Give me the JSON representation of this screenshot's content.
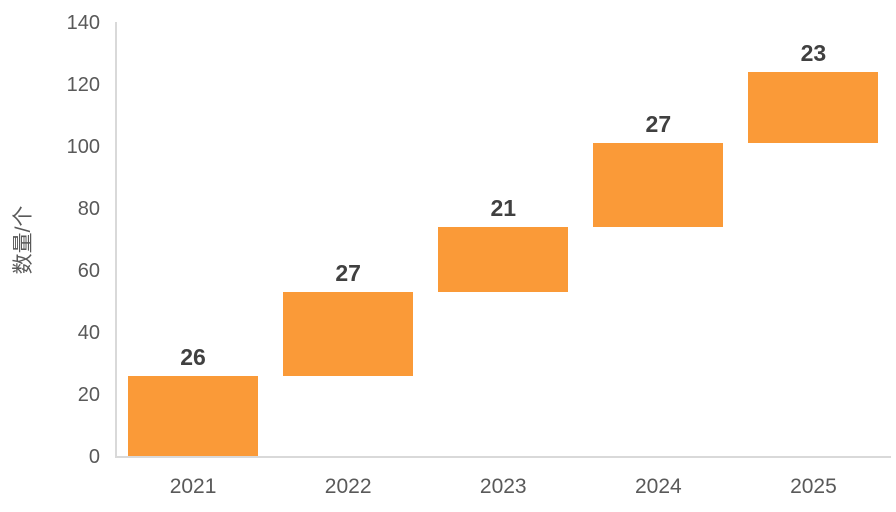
{
  "chart_data": {
    "type": "bar",
    "subtype": "waterfall",
    "title": "",
    "xlabel": "",
    "ylabel": "数量/个",
    "categories": [
      "2021",
      "2022",
      "2023",
      "2024",
      "2025"
    ],
    "values": [
      26,
      27,
      21,
      27,
      23
    ],
    "cumulative_totals": [
      26,
      53,
      74,
      101,
      124
    ],
    "data_labels": [
      "26",
      "27",
      "21",
      "27",
      "23"
    ],
    "ylim": [
      0,
      140
    ],
    "ytick_interval": 20,
    "ytick_labels": [
      "0",
      "20",
      "40",
      "60",
      "80",
      "100",
      "120",
      "140"
    ],
    "grid": "off",
    "legend": "none",
    "colors": {
      "bar": "#FA9A38",
      "axis_line": "#D9D9D9",
      "axis_text": "#595959",
      "data_label_text": "#404040",
      "background": "#FFFFFF"
    }
  }
}
